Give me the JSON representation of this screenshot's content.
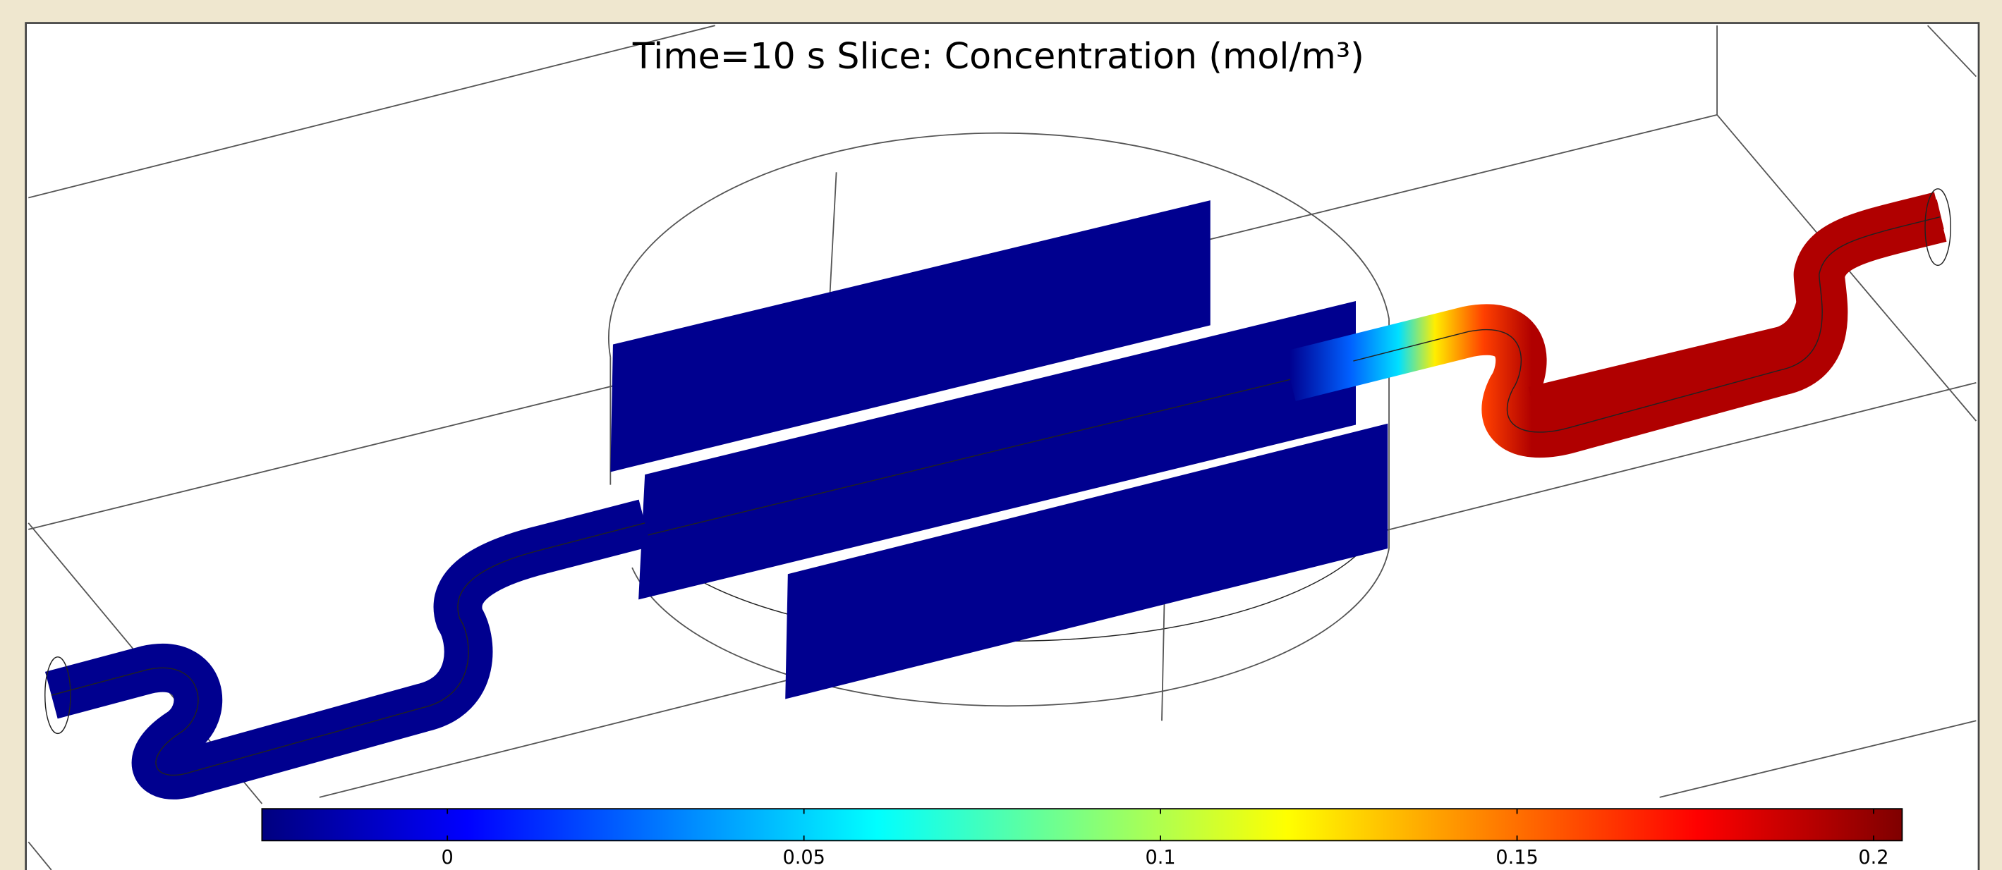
{
  "chart_data": {
    "type": "slice",
    "title": "Time=10 s   Slice: Concentration (mol/m³)",
    "colormap": "jet",
    "colorbar": {
      "lim": [
        -0.026,
        0.204
      ],
      "ticks": [
        0,
        0.05,
        0.1,
        0.15,
        0.2
      ]
    }
  }
}
